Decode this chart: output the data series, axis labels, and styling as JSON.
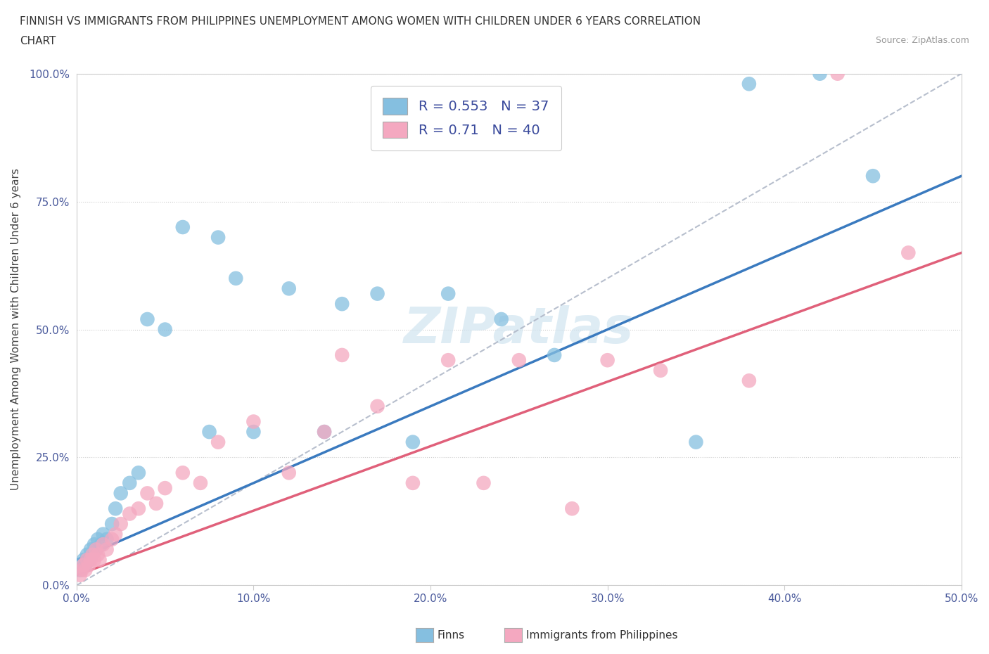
{
  "title_line1": "FINNISH VS IMMIGRANTS FROM PHILIPPINES UNEMPLOYMENT AMONG WOMEN WITH CHILDREN UNDER 6 YEARS CORRELATION",
  "title_line2": "CHART",
  "source": "Source: ZipAtlas.com",
  "ylabel": "Unemployment Among Women with Children Under 6 years",
  "xlim": [
    0,
    50
  ],
  "ylim": [
    0,
    100
  ],
  "xtick_labels": [
    "0.0%",
    "10.0%",
    "20.0%",
    "30.0%",
    "40.0%",
    "50.0%"
  ],
  "ytick_labels": [
    "0.0%",
    "25.0%",
    "50.0%",
    "75.0%",
    "100.0%"
  ],
  "finns_color": "#85bfe0",
  "philippines_color": "#f4a8c0",
  "finns_line_color": "#3a7abf",
  "philippines_line_color": "#e0607a",
  "finns_R": 0.553,
  "finns_N": 37,
  "philippines_R": 0.71,
  "philippines_N": 40,
  "legend_text_color": "#3a4a9c",
  "background_color": "#ffffff",
  "watermark_color": "#d0e4f0",
  "finns_x": [
    0.2,
    0.4,
    0.5,
    0.6,
    0.7,
    0.8,
    0.9,
    1.0,
    1.1,
    1.2,
    1.4,
    1.5,
    1.7,
    2.0,
    2.2,
    2.5,
    3.0,
    3.5,
    4.0,
    5.0,
    6.0,
    7.5,
    8.0,
    9.0,
    10.0,
    12.0,
    14.0,
    15.0,
    17.0,
    19.0,
    21.0,
    24.0,
    27.0,
    35.0,
    38.0,
    42.0,
    45.0
  ],
  "finns_y": [
    3,
    5,
    4,
    6,
    5,
    7,
    6,
    8,
    7,
    9,
    8,
    10,
    9,
    12,
    15,
    18,
    20,
    22,
    52,
    50,
    70,
    30,
    68,
    60,
    30,
    58,
    30,
    55,
    57,
    28,
    57,
    52,
    45,
    28,
    98,
    100,
    80
  ],
  "philippines_x": [
    0.2,
    0.3,
    0.4,
    0.5,
    0.6,
    0.7,
    0.8,
    0.9,
    1.0,
    1.1,
    1.2,
    1.3,
    1.5,
    1.7,
    2.0,
    2.2,
    2.5,
    3.0,
    3.5,
    4.0,
    4.5,
    5.0,
    6.0,
    7.0,
    8.0,
    10.0,
    12.0,
    14.0,
    15.0,
    17.0,
    19.0,
    21.0,
    23.0,
    25.0,
    28.0,
    30.0,
    33.0,
    38.0,
    43.0,
    47.0
  ],
  "philippines_y": [
    2,
    3,
    4,
    3,
    5,
    4,
    5,
    6,
    5,
    7,
    6,
    5,
    8,
    7,
    9,
    10,
    12,
    14,
    15,
    18,
    16,
    19,
    22,
    20,
    28,
    32,
    22,
    30,
    45,
    35,
    20,
    44,
    20,
    44,
    15,
    44,
    42,
    40,
    100,
    65
  ]
}
